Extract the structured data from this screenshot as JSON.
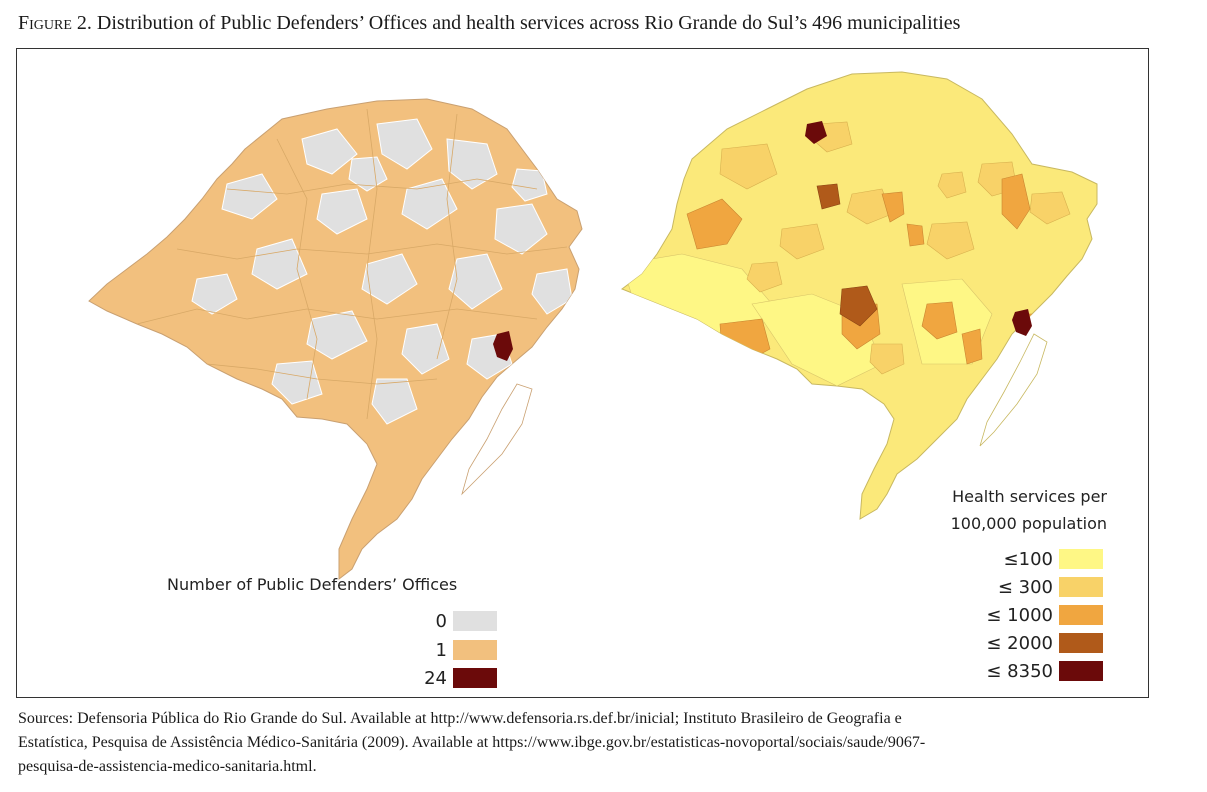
{
  "caption": {
    "label": "Figure 2.",
    "text": " Distribution of Public Defenders’ Offices and health services across Rio Grande do Sul’s 496 municipalities"
  },
  "map_left": {
    "legend_title": "Number of Public Defenders’ Offices",
    "legend": [
      {
        "label": "0",
        "color": "#e0e0e0"
      },
      {
        "label": "1",
        "color": "#f2c07e"
      },
      {
        "label": "24",
        "color": "#6b0a0a"
      }
    ],
    "region_fill_primary": "#f2c07e",
    "region_fill_secondary": "#e0e0e0",
    "highlight_color": "#6b0a0a"
  },
  "map_right": {
    "legend_title_line1": "Health services per",
    "legend_title_line2": "100,000 population",
    "legend": [
      {
        "label": "≤100",
        "color": "#fef785"
      },
      {
        "label": "≤ 300",
        "color": "#f8d268"
      },
      {
        "label": "≤ 1000",
        "color": "#f0a640"
      },
      {
        "label": "≤ 2000",
        "color": "#b05a1a"
      },
      {
        "label": "≤ 8350",
        "color": "#6b0a0a"
      }
    ],
    "region_fill_primary": "#fbe97a",
    "highlight_color": "#6b0a0a"
  },
  "sources": {
    "line1": "Sources: Defensoria Pública do Rio Grande do Sul. Available at http://www.defensoria.rs.def.br/inicial; Instituto Brasileiro de Geografia e",
    "line2": "Estatística, Pesquisa de Assistência Médico-Sanitária (2009). Available at https://www.ibge.gov.br/estatisticas-novoportal/sociais/saude/9067-",
    "line3": "pesquisa-de-assistencia-medico-sanitaria.html."
  }
}
